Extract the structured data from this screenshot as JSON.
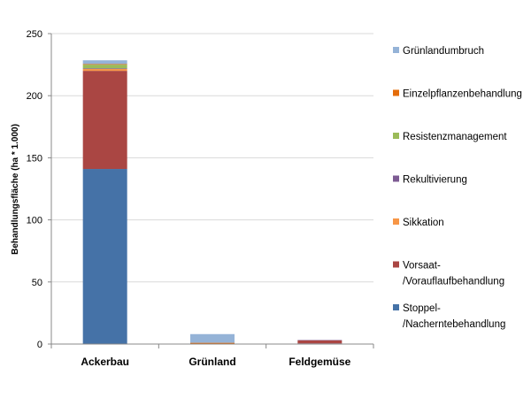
{
  "chart_data": {
    "type": "bar",
    "stacked": true,
    "title": "",
    "xlabel": "",
    "ylabel": "Behandlungsfläche (ha * 1.000)",
    "ylim": [
      0,
      250
    ],
    "yticks": [
      0,
      50,
      100,
      150,
      200,
      250
    ],
    "grid": "horizontal",
    "legend_position": "right",
    "categories": [
      "Ackerbau",
      "Grünland",
      "Feldgemüse"
    ],
    "series": [
      {
        "name": "Stoppel-/Nacherntebehandlung",
        "label_lines": [
          "Stoppel-",
          "/Nacherntebehandlung"
        ],
        "color": "#4572A7",
        "values": [
          141,
          0,
          0.5
        ]
      },
      {
        "name": "Vorsaat-/Vorauflaufbehandlung",
        "label_lines": [
          "Vorsaat-",
          "/Vorauflaufbehandlung"
        ],
        "color": "#AA4643",
        "values": [
          79,
          0,
          2.5
        ]
      },
      {
        "name": "Sikkation",
        "label_lines": [
          "Sikkation"
        ],
        "color": "#F79646",
        "values": [
          1.5,
          0,
          0
        ]
      },
      {
        "name": "Rekultivierung",
        "label_lines": [
          "Rekultivierung"
        ],
        "color": "#7D5B93",
        "values": [
          0.5,
          0,
          0.3
        ]
      },
      {
        "name": "Resistenzmanagement",
        "label_lines": [
          "Resistenzmanagement"
        ],
        "color": "#9BBB59",
        "values": [
          3,
          0,
          0
        ]
      },
      {
        "name": "Einzelpflanzenbehandlung",
        "label_lines": [
          "Einzelpflanzenbehandlung"
        ],
        "color": "#E46C0A",
        "values": [
          0.5,
          1,
          0
        ]
      },
      {
        "name": "Grünlandumbruch",
        "label_lines": [
          "Grünlandumbruch"
        ],
        "color": "#95B3D7",
        "values": [
          3,
          7,
          0
        ]
      }
    ]
  }
}
